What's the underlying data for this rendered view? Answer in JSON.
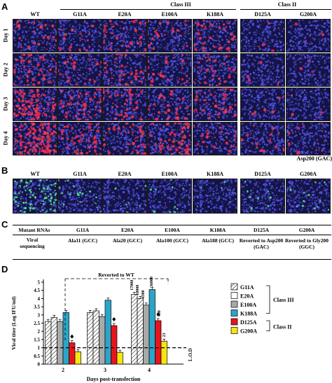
{
  "panels": {
    "a": "A",
    "b": "B",
    "c": "C",
    "d": "D"
  },
  "groups": {
    "class3": "Class III",
    "class2": "Class II"
  },
  "columns": [
    "WT",
    "G11A",
    "E20A",
    "E100A",
    "K188A",
    "D125A",
    "G200A"
  ],
  "days": [
    "Day 1",
    "Day 2",
    "Day 3",
    "Day 4"
  ],
  "asp_note": "Asp200 (GAC)",
  "table": {
    "row1_header": "Mutant RNAs",
    "row1": [
      "G11A",
      "E20A",
      "E100A",
      "K188A",
      "D125A",
      "G200A"
    ],
    "row2_header": "Viral sequencing",
    "row2": [
      "Ala11 (GCC)",
      "Ala20 (GCC)",
      "Ala100 (GCC)",
      "Ala188 (GCC)",
      "Reverted to Asp200 (GAC)",
      "Reverted to Gly200 (GGC)"
    ]
  },
  "chart_data": {
    "type": "bar",
    "xlabel": "Days post-transfection",
    "ylabel": "Viral titer (Log IFU/ml)",
    "categories": [
      "2",
      "3",
      "4"
    ],
    "ylim": [
      0,
      5
    ],
    "yticks": [
      "0",
      "0.5",
      "1",
      "1.5",
      "2",
      "2.5",
      "3",
      "3.5",
      "4",
      "4.5",
      "5"
    ],
    "lod_label": "L.O.D",
    "lod_value": 1,
    "reverted_label": "Reverted to WT",
    "series": [
      {
        "name": "",
        "values": [
          2.6,
          3.15,
          4.25
        ],
        "color": "#ffffff",
        "pattern": "wt"
      },
      {
        "name": "G11A",
        "values": [
          2.85,
          3.25,
          4.0
        ],
        "color": "#ffffff",
        "pattern": "hatch"
      },
      {
        "name": "E20A",
        "values": [
          2.6,
          2.9,
          3.6
        ],
        "color": "#a9a9a9"
      },
      {
        "name": "E100A",
        "values": [
          3.15,
          3.9,
          4.55
        ],
        "color": "#2aa5c8"
      },
      {
        "name": "K188A",
        "values": [
          1.3,
          2.35,
          2.65
        ],
        "color": "#e8141c"
      },
      {
        "name": "D125A",
        "values": [
          0.75,
          0.72,
          1.4
        ],
        "color": "#f5e60f"
      }
    ],
    "legend": [
      {
        "label": "G11A",
        "pattern": "hatch"
      },
      {
        "label": "E20A",
        "pattern": "white"
      },
      {
        "label": "E100A",
        "pattern": "gray"
      },
      {
        "label": "K188A",
        "pattern": "blue"
      },
      {
        "label": "D125A",
        "pattern": "red"
      },
      {
        "label": "G200A",
        "pattern": "yellow"
      }
    ],
    "legend_class3": "Class III",
    "legend_class2": "Class II",
    "annotations": [
      "17000",
      "10000",
      "4300",
      "36000",
      "400",
      "23"
    ],
    "legend_position": "right"
  }
}
